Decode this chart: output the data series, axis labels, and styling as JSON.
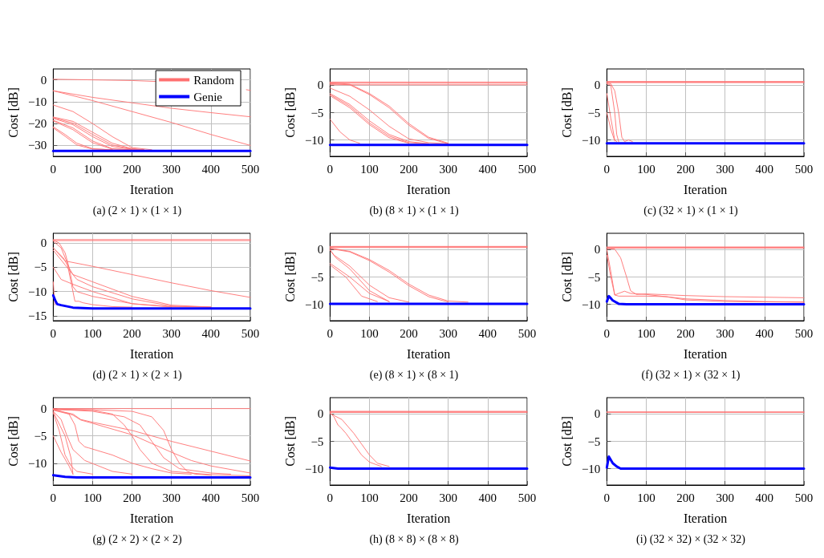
{
  "chart_data": [
    {
      "type": "line",
      "title": "(a) (2 × 1) × (1 × 1)",
      "xlabel": "Iteration",
      "ylabel": "Cost [dB]",
      "xlim": [
        0,
        500
      ],
      "xticks": [
        0,
        100,
        200,
        300,
        400,
        500
      ],
      "ylim": [
        -35,
        5
      ],
      "yticks": [
        -30,
        -20,
        -10,
        0
      ],
      "grid": true,
      "legend": "top right",
      "marker": "none",
      "line_style": "solid",
      "series": [
        {
          "name": "Random",
          "color": "#ff7070",
          "x": [
            0,
            200,
            300,
            400,
            490,
            500
          ],
          "values": [
            0.3,
            -0.3,
            -1,
            null,
            -4.5,
            -4.8
          ]
        },
        {
          "color": "#ff7070",
          "x": [
            0,
            100,
            200,
            300,
            400,
            500
          ],
          "values": [
            -5,
            -8,
            -10.5,
            -13,
            -15,
            -16.9
          ]
        },
        {
          "color": "#ff7070",
          "x": [
            0,
            100,
            200,
            300,
            400,
            500
          ],
          "values": [
            -5,
            -9.5,
            -14.5,
            -19.5,
            -25,
            -30
          ]
        },
        {
          "color": "#ff7070",
          "x": [
            0,
            50,
            100,
            150,
            200,
            250
          ],
          "values": [
            -11.5,
            -14.5,
            -20,
            -26,
            -31,
            -32
          ]
        },
        {
          "color": "#ff7070",
          "x": [
            0,
            50,
            100,
            150,
            200,
            230
          ],
          "values": [
            -17,
            -19,
            -24,
            -29,
            -31.5,
            -32
          ]
        },
        {
          "color": "#ff7070",
          "x": [
            0,
            50,
            100,
            150,
            200,
            230
          ],
          "values": [
            -17.3,
            -19.8,
            -25,
            -29.8,
            -31.7,
            -32
          ]
        },
        {
          "color": "#ff7070",
          "x": [
            0,
            50,
            100,
            150,
            200,
            230
          ],
          "values": [
            -17.6,
            -20.5,
            -26,
            -30.5,
            -31.8,
            -32
          ]
        },
        {
          "color": "#ff7070",
          "x": [
            0,
            50,
            100,
            150,
            200
          ],
          "values": [
            -18.5,
            -22,
            -28,
            -31.5,
            -32
          ]
        },
        {
          "color": "#ff7070",
          "x": [
            0,
            50,
            100,
            150,
            200
          ],
          "values": [
            -18.8,
            -22.8,
            -28.8,
            -31.7,
            -32
          ]
        },
        {
          "color": "#ff7070",
          "x": [
            0,
            30,
            60,
            100,
            150
          ],
          "values": [
            -21.5,
            -25,
            -29,
            -31.5,
            -32
          ]
        },
        {
          "color": "#ff7070",
          "x": [
            0,
            30,
            60,
            100,
            150
          ],
          "values": [
            -22,
            -25.8,
            -29.8,
            -31.7,
            -32
          ]
        },
        {
          "name": "Genie",
          "color": "#0000ff",
          "x": [
            0,
            500
          ],
          "values": [
            -32.5,
            -32.5
          ]
        }
      ]
    },
    {
      "type": "line",
      "title": "(b) (8 × 1) × (1 × 1)",
      "xlabel": "Iteration",
      "ylabel": "Cost [dB]",
      "xlim": [
        0,
        500
      ],
      "xticks": [
        0,
        100,
        200,
        300,
        400,
        500
      ],
      "ylim": [
        -13,
        3
      ],
      "yticks": [
        -10,
        -5,
        0
      ],
      "grid": true,
      "legend": false,
      "marker": "none",
      "line_style": "solid",
      "series": [
        {
          "color": "#ff7070",
          "x": [
            0,
            500
          ],
          "values": [
            0.6,
            0.6
          ]
        },
        {
          "color": "#ff7070",
          "x": [
            0,
            500
          ],
          "values": [
            0.4,
            0.4
          ]
        },
        {
          "color": "#ff7070",
          "x": [
            0,
            500
          ],
          "values": [
            0.1,
            0.1
          ]
        },
        {
          "color": "#ff7070",
          "x": [
            0,
            50,
            100,
            150,
            200,
            250,
            300
          ],
          "values": [
            0.5,
            0.2,
            -1.5,
            -3.8,
            -7,
            -9.5,
            -10.6
          ]
        },
        {
          "color": "#ff7070",
          "x": [
            0,
            50,
            100,
            150,
            200,
            250,
            300
          ],
          "values": [
            0.3,
            0.1,
            -1.7,
            -4.1,
            -7.3,
            -9.7,
            -10.7
          ]
        },
        {
          "color": "#ff7070",
          "x": [
            0,
            50,
            100,
            150,
            200,
            250,
            300
          ],
          "values": [
            -0.5,
            -2,
            -4.5,
            -7.5,
            -9.8,
            -10.5,
            -10.7
          ]
        },
        {
          "color": "#ff7070",
          "x": [
            0,
            50,
            100,
            150,
            200,
            250
          ],
          "values": [
            -1.5,
            -3.5,
            -6.5,
            -9,
            -10.3,
            -10.7
          ]
        },
        {
          "color": "#ff7070",
          "x": [
            0,
            50,
            100,
            150,
            200,
            250
          ],
          "values": [
            -1.7,
            -3.8,
            -6.9,
            -9.3,
            -10.5,
            -10.7
          ]
        },
        {
          "color": "#ff7070",
          "x": [
            0,
            50,
            100,
            150,
            200
          ],
          "values": [
            -1.9,
            -4.1,
            -7.2,
            -9.6,
            -10.6
          ]
        },
        {
          "color": "#ff7070",
          "x": [
            0,
            25,
            50,
            75
          ],
          "values": [
            -6.2,
            -8.5,
            -10,
            -10.6
          ]
        },
        {
          "color": "#0000ff",
          "x": [
            0,
            500
          ],
          "values": [
            -10.9,
            -10.9
          ]
        }
      ]
    },
    {
      "type": "line",
      "title": "(c) (32 × 1) × (1 × 1)",
      "xlabel": "Iteration",
      "ylabel": "Cost [dB]",
      "xlim": [
        0,
        500
      ],
      "xticks": [
        0,
        100,
        200,
        300,
        400,
        500
      ],
      "ylim": [
        -13,
        3
      ],
      "yticks": [
        -10,
        -5,
        0
      ],
      "grid": true,
      "legend": false,
      "marker": "none",
      "line_style": "solid",
      "series": [
        {
          "color": "#ff7070",
          "x": [
            0,
            500
          ],
          "values": [
            0.7,
            0.7
          ]
        },
        {
          "color": "#ff7070",
          "x": [
            0,
            500
          ],
          "values": [
            0.6,
            0.6
          ]
        },
        {
          "color": "#ff7070",
          "x": [
            0,
            500
          ],
          "values": [
            0.5,
            0.5
          ]
        },
        {
          "color": "#ff7070",
          "x": [
            0,
            10,
            20,
            30,
            38,
            45,
            55,
            65
          ],
          "values": [
            0.4,
            0.3,
            -1,
            -5,
            -9.5,
            -10.3,
            -10,
            -10.3
          ]
        },
        {
          "color": "#ff7070",
          "x": [
            0,
            10,
            20,
            25,
            30
          ],
          "values": [
            0.3,
            0,
            -5,
            -9,
            -10.3
          ]
        },
        {
          "color": "#ff7070",
          "x": [
            0,
            10,
            20,
            25
          ],
          "values": [
            -1.5,
            -6,
            -10,
            -10.3
          ]
        },
        {
          "color": "#ff7070",
          "x": [
            0,
            10,
            20
          ],
          "values": [
            -5,
            -8,
            -10.2
          ]
        },
        {
          "color": "#0000ff",
          "x": [
            0,
            500
          ],
          "values": [
            -10.6,
            -10.6
          ]
        }
      ]
    },
    {
      "type": "line",
      "title": "(d) (2 × 1) × (2 × 1)",
      "xlabel": "Iteration",
      "ylabel": "Cost [dB]",
      "xlim": [
        0,
        500
      ],
      "xticks": [
        0,
        100,
        200,
        300,
        400,
        500
      ],
      "ylim": [
        -16,
        2
      ],
      "yticks": [
        -15,
        -10,
        -5,
        0
      ],
      "grid": true,
      "legend": false,
      "marker": "none",
      "line_style": "solid",
      "series": [
        {
          "color": "#ff7070",
          "x": [
            0,
            500
          ],
          "values": [
            0.7,
            0.7
          ]
        },
        {
          "color": "#ff7070",
          "x": [
            0,
            500
          ],
          "values": [
            0.5,
            0.5
          ]
        },
        {
          "color": "#ff7070",
          "x": [
            0,
            15,
            30,
            40,
            50,
            60,
            100,
            200,
            300,
            400
          ],
          "values": [
            0.6,
            0,
            -2,
            -5,
            -9,
            -10,
            -11,
            -12.5,
            -13.1,
            -13.2
          ]
        },
        {
          "color": "#ff7070",
          "x": [
            0,
            20,
            35,
            45,
            55,
            65,
            75,
            100,
            150,
            200
          ],
          "values": [
            0.4,
            -1,
            -4,
            -8,
            -12,
            -12,
            -12.3,
            -12.7,
            -13.1,
            -13.2
          ]
        },
        {
          "color": "#ff7070",
          "x": [
            0,
            30,
            100,
            200,
            300,
            400,
            500
          ],
          "values": [
            -1,
            -3.7,
            -4.8,
            -6.5,
            -8.2,
            -9.8,
            -11.2
          ]
        },
        {
          "color": "#ff7070",
          "x": [
            0,
            25,
            50,
            100,
            150,
            200,
            300,
            400
          ],
          "values": [
            -1,
            -3,
            -6.5,
            -8,
            -9.5,
            -11,
            -12.8,
            -13.2
          ]
        },
        {
          "color": "#ff7070",
          "x": [
            0,
            30,
            60,
            100,
            200,
            300,
            400
          ],
          "values": [
            -1.5,
            -4.5,
            -7.5,
            -9,
            -11.5,
            -13,
            -13.2
          ]
        },
        {
          "color": "#ff7070",
          "x": [
            0,
            20,
            50,
            100,
            200,
            300
          ],
          "values": [
            -5,
            -7.5,
            -8.5,
            -10,
            -12.5,
            -13.2
          ]
        },
        {
          "color": "#ff7070",
          "x": [
            0,
            4
          ],
          "values": [
            -8,
            -12.8
          ]
        },
        {
          "color": "#0000ff",
          "x": [
            0,
            5,
            10,
            20,
            50,
            100,
            500
          ],
          "values": [
            -10.8,
            -11.8,
            -12.6,
            -12.8,
            -13.3,
            -13.5,
            -13.5
          ]
        }
      ]
    },
    {
      "type": "line",
      "title": "(e) (8 × 1) × (8 × 1)",
      "xlabel": "Iteration",
      "ylabel": "Cost [dB]",
      "xlim": [
        0,
        500
      ],
      "xticks": [
        0,
        100,
        200,
        300,
        400,
        500
      ],
      "ylim": [
        -13,
        3
      ],
      "yticks": [
        -10,
        -5,
        0
      ],
      "grid": true,
      "legend": false,
      "marker": "none",
      "line_style": "solid",
      "series": [
        {
          "color": "#ff7070",
          "x": [
            0,
            500
          ],
          "values": [
            0.6,
            0.6
          ]
        },
        {
          "color": "#ff7070",
          "x": [
            0,
            500
          ],
          "values": [
            0.5,
            0.5
          ]
        },
        {
          "color": "#ff7070",
          "x": [
            0,
            500
          ],
          "values": [
            0.4,
            0.4
          ]
        },
        {
          "color": "#ff7070",
          "x": [
            0,
            50,
            100,
            150,
            200,
            250,
            300,
            350
          ],
          "values": [
            0.3,
            -0.3,
            -1.8,
            -3.8,
            -6.3,
            -8.3,
            -9.4,
            -9.6
          ]
        },
        {
          "color": "#ff7070",
          "x": [
            0,
            50,
            100,
            150,
            200,
            250,
            300
          ],
          "values": [
            0.2,
            -0.4,
            -2,
            -4.1,
            -6.6,
            -8.6,
            -9.6
          ]
        },
        {
          "color": "#ff7070",
          "x": [
            0,
            10,
            50,
            100,
            150,
            200
          ],
          "values": [
            0,
            -1,
            -3,
            -6.5,
            -8.8,
            -9.6
          ]
        },
        {
          "color": "#ff7070",
          "x": [
            0,
            15,
            50,
            100,
            150
          ],
          "values": [
            -0.1,
            -1.5,
            -3.5,
            -7.5,
            -9.5
          ]
        },
        {
          "color": "#ff7070",
          "x": [
            0,
            50,
            100,
            150
          ],
          "values": [
            -2.5,
            -5,
            -8,
            -9.5
          ]
        },
        {
          "color": "#ff7070",
          "x": [
            0,
            40,
            80,
            120
          ],
          "values": [
            -2.8,
            -5,
            -8.5,
            -9.5
          ]
        },
        {
          "color": "#0000ff",
          "x": [
            0,
            500
          ],
          "values": [
            -9.9,
            -9.9
          ]
        }
      ]
    },
    {
      "type": "line",
      "title": "(f) (32 × 1) × (32 × 1)",
      "xlabel": "Iteration",
      "ylabel": "Cost [dB]",
      "xlim": [
        0,
        500
      ],
      "xticks": [
        0,
        100,
        200,
        300,
        400,
        500
      ],
      "ylim": [
        -13,
        3
      ],
      "yticks": [
        -10,
        -5,
        0
      ],
      "grid": true,
      "legend": false,
      "marker": "none",
      "line_style": "solid",
      "series": [
        {
          "color": "#ff7070",
          "x": [
            0,
            500
          ],
          "values": [
            0.5,
            0.5
          ]
        },
        {
          "color": "#ff7070",
          "x": [
            0,
            500
          ],
          "values": [
            0.4,
            0.4
          ]
        },
        {
          "color": "#ff7070",
          "x": [
            0,
            500
          ],
          "values": [
            0.3,
            0.3
          ]
        },
        {
          "color": "#ff7070",
          "x": [
            0,
            20,
            35,
            50,
            60,
            75,
            100,
            200,
            300,
            400,
            500
          ],
          "values": [
            0.2,
            0.1,
            -1.5,
            -5,
            -7.5,
            -8.2,
            -8.1,
            -8.4,
            -8.6,
            -8.7,
            -8.8
          ]
        },
        {
          "color": "#ff7070",
          "x": [
            0,
            10,
            20,
            30,
            45,
            60,
            100,
            200,
            300,
            400,
            500
          ],
          "values": [
            0,
            -4,
            -8.3,
            -8,
            -7.6,
            -8,
            -8.2,
            -9,
            -9.3,
            -9.5,
            -9.6
          ]
        },
        {
          "color": "#ff7070",
          "x": [
            0,
            10,
            20,
            30,
            100,
            150,
            200,
            300,
            500
          ],
          "values": [
            -1,
            -5,
            -8.3,
            -8.5,
            -8.5,
            -8.6,
            -9.2,
            -9.5,
            -9.6
          ]
        },
        {
          "color": "#0000ff",
          "x": [
            0,
            5,
            15,
            30,
            50,
            500
          ],
          "values": [
            -9.5,
            -8.5,
            -9.3,
            -9.9,
            -10,
            -10
          ]
        }
      ]
    },
    {
      "type": "line",
      "title": "(g) (2 × 2) × (2 × 2)",
      "xlabel": "Iteration",
      "ylabel": "Cost [dB]",
      "xlim": [
        0,
        500
      ],
      "xticks": [
        0,
        100,
        200,
        300,
        400,
        500
      ],
      "ylim": [
        -14,
        2
      ],
      "yticks": [
        -10,
        -5,
        0
      ],
      "grid": true,
      "legend": false,
      "marker": "none",
      "line_style": "solid",
      "series": [
        {
          "color": "#ff7070",
          "x": [
            0,
            500
          ],
          "values": [
            0,
            0
          ]
        },
        {
          "color": "#ff7070",
          "x": [
            0,
            100,
            200,
            250,
            280,
            300,
            320,
            340,
            360,
            400
          ],
          "values": [
            -0.1,
            -0.2,
            -0.5,
            -1.5,
            -4,
            -7.5,
            -10,
            -11.5,
            -12,
            -12.2
          ]
        },
        {
          "color": "#ff7070",
          "x": [
            0,
            100,
            150,
            180,
            200,
            220,
            250,
            300,
            400,
            500
          ],
          "values": [
            -0.2,
            -0.3,
            -1,
            -3,
            -5,
            -7.5,
            -10,
            -11.5,
            -12.1,
            -12.3
          ]
        },
        {
          "color": "#ff7070",
          "x": [
            0,
            100,
            180,
            220,
            250,
            280,
            320,
            400,
            450
          ],
          "values": [
            -0.1,
            -0.5,
            -1.5,
            -3,
            -6,
            -9,
            -11,
            -11.8,
            -12
          ]
        },
        {
          "color": "#ff7070",
          "x": [
            0,
            50,
            70,
            100,
            200,
            300,
            400,
            500
          ],
          "values": [
            -0.2,
            -1,
            -2,
            -2.5,
            -4,
            -6,
            -7.8,
            -9.6
          ]
        },
        {
          "color": "#ff7070",
          "x": [
            0,
            50,
            70,
            100,
            200,
            250,
            300,
            350,
            400,
            500
          ],
          "values": [
            -0.1,
            -1.2,
            -2.1,
            -2.7,
            -4.8,
            -6.4,
            -8,
            -9.5,
            -10.5,
            -11.8
          ]
        },
        {
          "color": "#ff7070",
          "x": [
            0,
            40,
            55,
            65,
            80,
            90,
            150,
            200,
            250,
            300,
            350
          ],
          "values": [
            -0.3,
            -1,
            -3,
            -6,
            -7,
            -7.2,
            -8.5,
            -10,
            -11,
            -11.8,
            -12
          ]
        },
        {
          "color": "#ff7070",
          "x": [
            0,
            20,
            35,
            50,
            80,
            150,
            200
          ],
          "values": [
            -0.5,
            -2,
            -5,
            -7.5,
            -9.5,
            -11.5,
            -12
          ]
        },
        {
          "color": "#ff7070",
          "x": [
            0,
            15,
            30,
            45,
            60,
            100
          ],
          "values": [
            -0.8,
            -4,
            -8.5,
            -10.5,
            -11.5,
            -12
          ]
        },
        {
          "color": "#ff7070",
          "x": [
            0,
            30,
            45,
            50
          ],
          "values": [
            -0.6,
            -5,
            -9,
            -12
          ]
        },
        {
          "color": "#ff7070",
          "x": [
            0,
            20,
            40,
            50
          ],
          "values": [
            -5,
            -8,
            -10.5,
            -12
          ]
        },
        {
          "color": "#0000ff",
          "x": [
            0,
            30,
            60,
            500
          ],
          "values": [
            -12.2,
            -12.5,
            -12.6,
            -12.6
          ]
        }
      ]
    },
    {
      "type": "line",
      "title": "(h) (8 × 8) × (8 × 8)",
      "xlabel": "Iteration",
      "ylabel": "Cost [dB]",
      "xlim": [
        0,
        500
      ],
      "xticks": [
        0,
        100,
        200,
        300,
        400,
        500
      ],
      "ylim": [
        -13,
        3
      ],
      "yticks": [
        -10,
        -5,
        0
      ],
      "grid": true,
      "legend": false,
      "marker": "none",
      "line_style": "solid",
      "series": [
        {
          "color": "#ff7070",
          "x": [
            0,
            500
          ],
          "values": [
            0.5,
            0.5
          ]
        },
        {
          "color": "#ff7070",
          "x": [
            0,
            500
          ],
          "values": [
            0.4,
            0.4
          ]
        },
        {
          "color": "#ff7070",
          "x": [
            0,
            500
          ],
          "values": [
            0.3,
            0.3
          ]
        },
        {
          "color": "#ff7070",
          "x": [
            0,
            10,
            20,
            25,
            40,
            60,
            80,
            100,
            130
          ],
          "values": [
            0.2,
            -0.5,
            -2,
            -2.3,
            -3.5,
            -5.5,
            -7.5,
            -8.8,
            -9.6
          ]
        },
        {
          "color": "#ff7070",
          "x": [
            0,
            30,
            60,
            80,
            100,
            120,
            150
          ],
          "values": [
            0.1,
            -1,
            -3.5,
            -5.5,
            -7.5,
            -9,
            -9.6
          ]
        },
        {
          "color": "#0000ff",
          "x": [
            0,
            20,
            500
          ],
          "values": [
            -9.8,
            -10,
            -10
          ]
        }
      ]
    },
    {
      "type": "line",
      "title": "(i) (32 × 32) × (32 × 32)",
      "xlabel": "Iteration",
      "ylabel": "Cost [dB]",
      "xlim": [
        0,
        500
      ],
      "xticks": [
        0,
        100,
        200,
        300,
        400,
        500
      ],
      "ylim": [
        -13,
        3
      ],
      "yticks": [
        -10,
        -5,
        0
      ],
      "grid": true,
      "legend": false,
      "marker": "none",
      "line_style": "solid",
      "series": [
        {
          "color": "#ff7070",
          "x": [
            0,
            500
          ],
          "values": [
            0.4,
            0.4
          ]
        },
        {
          "color": "#ff7070",
          "x": [
            0,
            500
          ],
          "values": [
            0.3,
            0.3
          ]
        },
        {
          "color": "#0000ff",
          "x": [
            0,
            5,
            15,
            25,
            35,
            500
          ],
          "values": [
            -9.8,
            -7.8,
            -9,
            -9.6,
            -10,
            -10
          ]
        }
      ]
    }
  ]
}
